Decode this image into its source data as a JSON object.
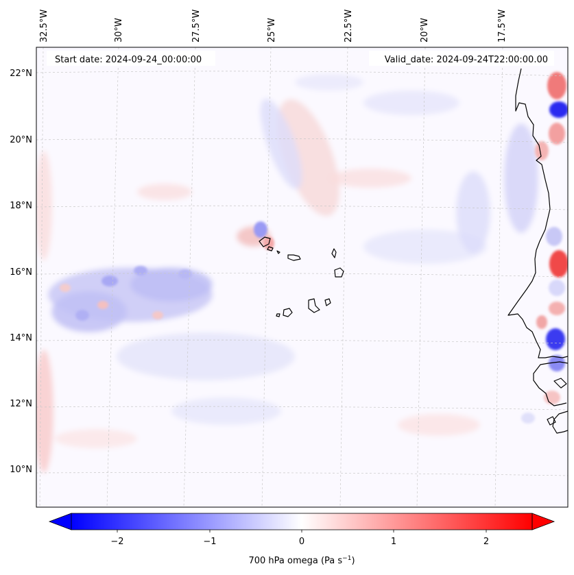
{
  "map": {
    "start_date_text": "Start date: 2024-09-24_00:00:00",
    "valid_date_text": "Valid_date: 2024-09-24T22:00:00.00",
    "lon_labels": [
      "32.5°W",
      "30°W",
      "27.5°W",
      "25°W",
      "22.5°W",
      "20°W",
      "17.5°W"
    ],
    "lat_labels": [
      "22°N",
      "20°N",
      "18°N",
      "16°N",
      "14°N",
      "12°N",
      "10°N"
    ],
    "extent": {
      "lon_min": -33.0,
      "lon_max": -15.5,
      "lat_min": 8.8,
      "lat_max": 22.8
    },
    "field": "700 hPa omega",
    "colormap": "bwr",
    "coastline_color": "#000000",
    "gridline_color": "#b0b0b0"
  },
  "colorbar": {
    "label": "700 hPa omega (Pa s",
    "label_exponent": "−1",
    "label_close": ")",
    "ticks": [
      "−2",
      "−1",
      "0",
      "1",
      "2"
    ],
    "tick_values": [
      -2,
      -1,
      0,
      1,
      2
    ],
    "range": [
      -2.5,
      2.5
    ],
    "extend": "both",
    "min_color": "#0000ff",
    "mid_color": "#ffffff",
    "max_color": "#ff0000"
  }
}
